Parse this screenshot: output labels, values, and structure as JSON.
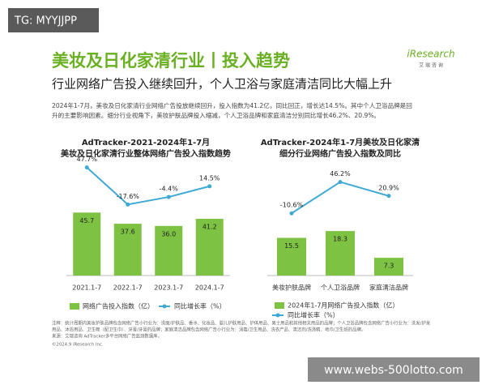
{
  "watermark_top": "TG: MYYJJPP",
  "watermark_bottom": "www.webs-500lotto.com",
  "logo": {
    "name": "iResearch",
    "sub": "艾 瑞 咨 询"
  },
  "header": {
    "title": "美妆及日化家清行业丨投入趋势",
    "subtitle": "行业网络广告投入继续回升，个人卫浴与家庭清洁同比大幅上升"
  },
  "body": [
    "2024年1-7月，美妆及日化家清行业网络广告投放继续回升，投入指数为41.2亿，同比回正，增长达14.5%。其中个人卫浴品牌是回",
    "升的主要影响因素。细分行业视角下，美妆护肤品牌投入缩减，个人卫浴品牌和家庭清洁分别同比增长46.2%、20.9%。"
  ],
  "chart_data": [
    {
      "type": "combo",
      "title": [
        "AdTracker-2021-2024年1-7月",
        "美妆及日化家清行业整体网络广告投入指数趋势"
      ],
      "categories": [
        "2021.1-7",
        "2022.1-7",
        "2023.1-7",
        "2024.1-7"
      ],
      "series": [
        {
          "name": "网络广告投入指数（亿）",
          "type": "bar",
          "color": "#7dc242",
          "values": [
            45.7,
            37.6,
            36.0,
            41.2
          ],
          "value_labels": [
            "45.7",
            "37.6",
            "36.0",
            "41.2"
          ]
        },
        {
          "name": "同比增长率（%）",
          "type": "line",
          "color": "#3fa9d6",
          "values": [
            47.7,
            -17.6,
            -4.4,
            14.5
          ],
          "value_labels": [
            "47.7%",
            "-17.6%",
            "-4.4%",
            "14.5%"
          ]
        }
      ]
    },
    {
      "type": "combo",
      "title": [
        "AdTracker-2024年1-7月美妆及日化家清",
        "细分行业网络广告投入指数及同比"
      ],
      "categories": [
        "美妆护肤品牌",
        "个人卫浴品牌",
        "家庭清洁品牌"
      ],
      "series": [
        {
          "name": "2024年1-7月网络广告投入指数（亿）",
          "type": "bar",
          "color": "#7dc242",
          "values": [
            15.5,
            18.3,
            7.3
          ]
        },
        {
          "name": "同比增长率（%）",
          "type": "line",
          "color": "#3fa9d6",
          "values": [
            -10.6,
            46.2,
            20.9
          ],
          "value_labels": [
            "-10.6%",
            "46.2%",
            "20.9%"
          ]
        }
      ]
    }
  ],
  "notes": [
    "注释：统计周期内美妆护肤品牌包含网络广告小行业为：洗面/护肤品、香水、化妆品、婴儿护肤用品、护体用品、男士用品和其他相关用品的品牌；个人卫浴品牌包含网络广告小行业为：洗发/护发",
    "用品、沐浴用品、卫生棉（配卫生巾）、牙膏/牙膏的品牌；家庭清洁品牌包含网络广告小行业为：消毒/卫生用品、洗衣产品、清洁剂/洗涤精、地巾/卫生纸的品牌。",
    "来源：艾瑞咨询 AdTracker多平台网络广告监测数据库。"
  ],
  "copyright": "©2024.9 iResearch Inc."
}
